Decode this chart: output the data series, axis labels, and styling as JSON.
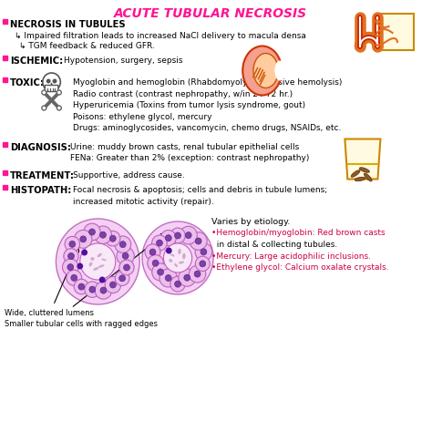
{
  "title": "ACUTE TUBULAR NECROSIS",
  "title_color": "#FF1493",
  "bg_color": "#FFFFFF",
  "accent_color": "#FF1493",
  "bullet_color": "#CC0066",
  "bottom_right": [
    "Varies by etiology.",
    "•Hemoglobin/myoglobin: Red brown casts",
    "  in distal & collecting tubules.",
    "•Mercury: Large acidophilic inclusions.",
    "•Ethylene glycol: Calcium oxalate crystals."
  ],
  "bottom_left_label": "Wide, cluttered lumens\nSmaller tubular cells with ragged edges"
}
